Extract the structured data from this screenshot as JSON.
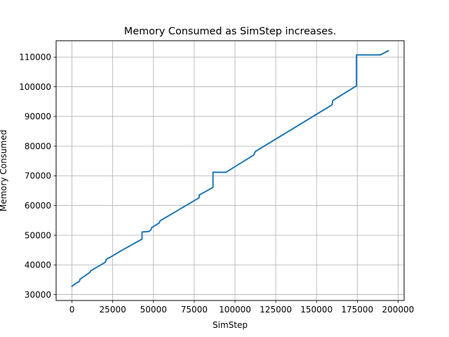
{
  "chart_data": {
    "type": "line",
    "title": "Memory Consumed as SimStep increases.",
    "xlabel": "SimStep",
    "ylabel": "Memory Consumed",
    "xlim": [
      -9700,
      203700
    ],
    "ylim": [
      28000,
      115500
    ],
    "x_ticks": [
      0,
      25000,
      50000,
      75000,
      100000,
      125000,
      150000,
      175000,
      200000
    ],
    "y_ticks": [
      30000,
      40000,
      50000,
      60000,
      70000,
      80000,
      90000,
      100000,
      110000
    ],
    "grid": true,
    "legend": "none",
    "series": [
      {
        "color": "#1f77b4",
        "points": [
          [
            0,
            32800
          ],
          [
            2500,
            33800
          ],
          [
            4500,
            34400
          ],
          [
            5000,
            35200
          ],
          [
            9000,
            36700
          ],
          [
            11000,
            37500
          ],
          [
            11500,
            38000
          ],
          [
            20500,
            40900
          ],
          [
            21000,
            41800
          ],
          [
            22000,
            42200
          ],
          [
            23000,
            42400
          ],
          [
            30000,
            44700
          ],
          [
            43000,
            48700
          ],
          [
            43000,
            51100
          ],
          [
            47000,
            51200
          ],
          [
            48500,
            51800
          ],
          [
            49000,
            52600
          ],
          [
            53500,
            54100
          ],
          [
            54000,
            54800
          ],
          [
            78000,
            62600
          ],
          [
            78000,
            63500
          ],
          [
            86500,
            66100
          ],
          [
            86500,
            71200
          ],
          [
            94500,
            71200
          ],
          [
            111500,
            77000
          ],
          [
            112500,
            78200
          ],
          [
            159500,
            93900
          ],
          [
            160000,
            95400
          ],
          [
            174500,
            100300
          ],
          [
            174500,
            110700
          ],
          [
            189000,
            110700
          ],
          [
            194000,
            112100
          ]
        ]
      }
    ]
  }
}
